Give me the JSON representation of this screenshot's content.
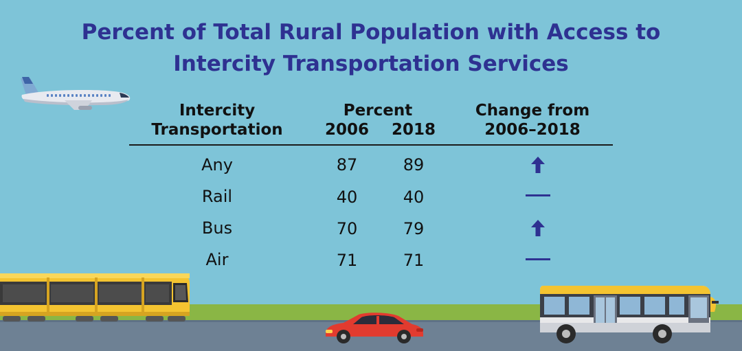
{
  "title": {
    "line1": "Percent of Total Rural Population with Access to",
    "line2": "Intercity Transportation Services"
  },
  "table": {
    "col_mode_header": [
      "Intercity",
      "Transportation"
    ],
    "col_percent_header": "Percent",
    "col_year_2006": "2006",
    "col_year_2018": "2018",
    "col_change_header": [
      "Change from",
      "2006–2018"
    ],
    "rows": [
      {
        "mode": "Any",
        "v2006": "87",
        "v2018": "89",
        "change": "up-arrow-icon"
      },
      {
        "mode": "Rail",
        "v2006": "40",
        "v2018": "40",
        "change": "no-change-dash-icon"
      },
      {
        "mode": "Bus",
        "v2006": "70",
        "v2018": "79",
        "change": "up-arrow-icon"
      },
      {
        "mode": "Air",
        "v2006": "71",
        "v2018": "71",
        "change": "no-change-dash-icon"
      }
    ]
  },
  "colors": {
    "background": "#7ec4d8",
    "title": "#2e3191",
    "indicator": "#2e3191",
    "grass": "#8ab645",
    "road": "#6e8194"
  },
  "illustrations": [
    "airplane-icon",
    "train-icon",
    "car-icon",
    "bus-icon"
  ]
}
